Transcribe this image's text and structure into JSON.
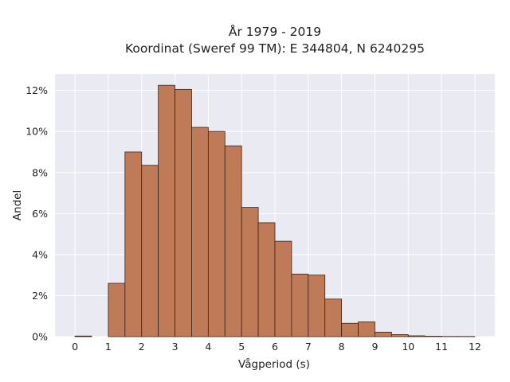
{
  "chart_data": {
    "type": "bar",
    "title": [
      "År 1979 - 2019",
      "Koordinat (Sweref 99 TM): E 344804, N 6240295"
    ],
    "xlabel": "Vågperiod (s)",
    "ylabel": "Andel",
    "bin_width": 0.5,
    "bins_start": [
      0,
      0.5,
      1,
      1.5,
      2,
      2.5,
      3,
      3.5,
      4,
      4.5,
      5,
      5.5,
      6,
      6.5,
      7,
      7.5,
      8,
      8.5,
      9,
      9.5,
      10,
      10.5,
      11,
      11.5
    ],
    "values": [
      0.03,
      0,
      2.6,
      9.0,
      8.35,
      12.25,
      12.05,
      10.2,
      10.0,
      9.3,
      6.3,
      5.55,
      4.65,
      3.05,
      3.0,
      1.83,
      0.65,
      0.72,
      0.22,
      0.1,
      0.04,
      0.02,
      0.01,
      0.01
    ],
    "x_ticks": [
      "0",
      "1",
      "2",
      "3",
      "4",
      "5",
      "6",
      "7",
      "8",
      "9",
      "10",
      "11",
      "12"
    ],
    "y_ticks": [
      "0%",
      "2%",
      "4%",
      "6%",
      "8%",
      "10%",
      "12%"
    ],
    "xlim": [
      -0.6,
      12.6
    ],
    "ylim": [
      0,
      12.8
    ],
    "grid": true,
    "colors": {
      "bar_fill": "#bf7a57",
      "bar_edge": "#3a2418",
      "plot_background": "#eaeaf2",
      "grid": "#ffffff"
    }
  }
}
